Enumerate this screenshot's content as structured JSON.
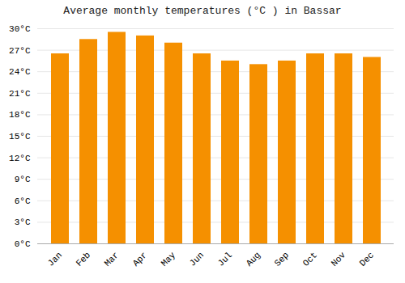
{
  "chart_data": {
    "type": "bar",
    "title": "Average monthly temperatures (°C ) in Bassar",
    "categories": [
      "Jan",
      "Feb",
      "Mar",
      "Apr",
      "May",
      "Jun",
      "Jul",
      "Aug",
      "Sep",
      "Oct",
      "Nov",
      "Dec"
    ],
    "values": [
      26.5,
      28.5,
      29.5,
      29.0,
      28.0,
      26.5,
      25.5,
      25.0,
      25.5,
      26.5,
      26.5,
      26.0
    ],
    "color": "#F59000",
    "ylim": [
      0,
      30
    ],
    "yticks": [
      {
        "value": 0,
        "label": "0°C"
      },
      {
        "value": 3,
        "label": "3°C"
      },
      {
        "value": 6,
        "label": "6°C"
      },
      {
        "value": 9,
        "label": "9°C"
      },
      {
        "value": 12,
        "label": "12°C"
      },
      {
        "value": 15,
        "label": "15°C"
      },
      {
        "value": 18,
        "label": "18°C"
      },
      {
        "value": 21,
        "label": "21°C"
      },
      {
        "value": 24,
        "label": "24°C"
      },
      {
        "value": 27,
        "label": "27°C"
      },
      {
        "value": 30,
        "label": "30°C"
      }
    ],
    "grid": true
  }
}
